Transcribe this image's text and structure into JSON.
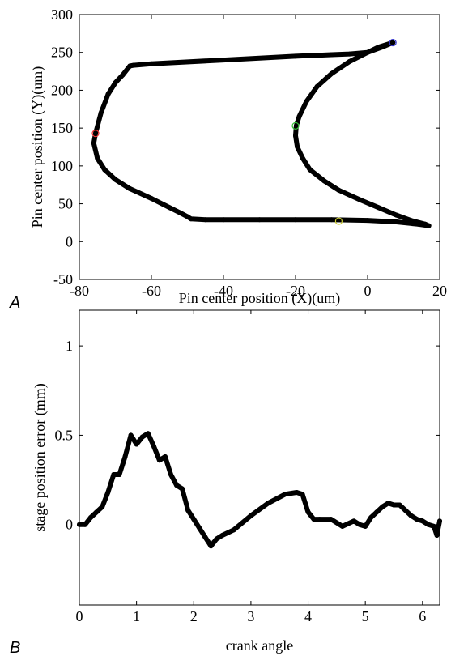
{
  "chart_data": [
    {
      "panel_label": "A",
      "type": "line",
      "xlabel": "Pin center position (X)(um)",
      "ylabel": "Pin center position (Y)(um)",
      "xlim": [
        -80,
        20
      ],
      "ylim": [
        -50,
        300
      ],
      "xticks": [
        "-80",
        "-60",
        "-40",
        "-20",
        "0",
        "20"
      ],
      "yticks": [
        "-50",
        "0",
        "50",
        "100",
        "150",
        "200",
        "250",
        "300"
      ],
      "series": [
        {
          "color": "#000000",
          "x": [
            7,
            3,
            0,
            -5,
            -10,
            -20,
            -40,
            -60,
            -65,
            -66,
            -68,
            -70,
            -72,
            -74,
            -75.5,
            -76,
            -75,
            -73,
            -70,
            -66,
            -60,
            -55,
            -52,
            -50,
            -49,
            -45,
            -40,
            -30,
            -20,
            -10,
            0,
            8,
            14,
            17,
            16,
            12,
            8,
            3,
            -2,
            -8,
            -12,
            -16,
            -18,
            -19.5,
            -20,
            -19.8,
            -19,
            -17,
            -14,
            -10,
            -5,
            0,
            4,
            7
          ],
          "y": [
            263,
            257,
            250,
            248,
            247,
            245,
            240,
            235,
            233,
            232,
            220,
            210,
            195,
            170,
            143,
            130,
            110,
            95,
            82,
            70,
            57,
            45,
            38,
            33,
            30,
            29,
            29,
            29,
            29,
            29,
            28,
            26,
            23,
            21,
            23,
            28,
            35,
            45,
            55,
            68,
            80,
            95,
            110,
            125,
            140,
            153,
            165,
            185,
            205,
            222,
            238,
            250,
            257,
            263
          ]
        }
      ],
      "markers": [
        {
          "x": 7,
          "y": 263,
          "color": "#3333cc"
        },
        {
          "x": -75.5,
          "y": 143,
          "color": "#ee3333"
        },
        {
          "x": -20,
          "y": 153,
          "color": "#33bb33"
        },
        {
          "x": -8,
          "y": 27,
          "color": "#cccc33"
        }
      ]
    },
    {
      "panel_label": "B",
      "type": "line",
      "xlabel": "crank angle",
      "ylabel": "stage position error (mm)",
      "xlim": [
        0,
        6.3
      ],
      "ylim": [
        -0.45,
        1.2
      ],
      "xticks": [
        "0",
        "1",
        "2",
        "3",
        "4",
        "5",
        "6"
      ],
      "yticks": [
        "0",
        "0.5",
        "1"
      ],
      "series": [
        {
          "color": "#000000",
          "x": [
            0,
            0.1,
            0.2,
            0.3,
            0.4,
            0.5,
            0.6,
            0.7,
            0.8,
            0.9,
            1.0,
            1.1,
            1.2,
            1.3,
            1.4,
            1.5,
            1.6,
            1.7,
            1.8,
            1.9,
            2.0,
            2.1,
            2.2,
            2.3,
            2.35,
            2.4,
            2.5,
            2.7,
            3.0,
            3.3,
            3.6,
            3.8,
            3.9,
            4.0,
            4.1,
            4.2,
            4.4,
            4.6,
            4.8,
            4.9,
            5.0,
            5.1,
            5.2,
            5.3,
            5.4,
            5.5,
            5.6,
            5.7,
            5.8,
            5.9,
            6.0,
            6.1,
            6.2,
            6.25,
            6.3
          ],
          "y": [
            0.0,
            0.0,
            0.04,
            0.07,
            0.1,
            0.18,
            0.28,
            0.28,
            0.38,
            0.5,
            0.45,
            0.49,
            0.51,
            0.44,
            0.36,
            0.38,
            0.28,
            0.22,
            0.2,
            0.08,
            0.03,
            -0.02,
            -0.07,
            -0.12,
            -0.1,
            -0.08,
            -0.06,
            -0.03,
            0.05,
            0.12,
            0.17,
            0.18,
            0.17,
            0.07,
            0.03,
            0.03,
            0.03,
            -0.01,
            0.02,
            0.0,
            -0.01,
            0.04,
            0.07,
            0.1,
            0.12,
            0.11,
            0.11,
            0.08,
            0.05,
            0.03,
            0.02,
            0.0,
            -0.01,
            -0.06,
            0.02
          ]
        }
      ]
    }
  ]
}
